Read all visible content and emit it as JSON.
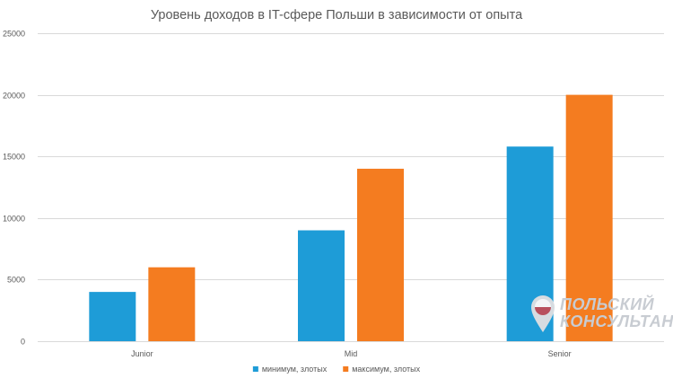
{
  "chart_data": {
    "type": "bar",
    "title": "Уровень доходов в IT-сфере Польши в зависимости от опыта",
    "xlabel": "",
    "ylabel": "",
    "categories": [
      "Junior",
      "Mid",
      "Senior"
    ],
    "series": [
      {
        "name": "минимум, злотых",
        "color": "#1e9cd7",
        "values": [
          4000,
          9000,
          15800
        ]
      },
      {
        "name": "максимум, злотых",
        "color": "#f47c20",
        "values": [
          6000,
          14000,
          20000
        ]
      }
    ],
    "ylim": [
      0,
      25000
    ],
    "yticks": [
      0,
      5000,
      10000,
      15000,
      20000,
      25000
    ],
    "grid": true,
    "legend_position": "bottom"
  },
  "watermark": {
    "line1": "ПОЛЬСКИЙ",
    "line2": "КОНСУЛЬТАНТ",
    "icon": "map-pin-flag-icon"
  }
}
